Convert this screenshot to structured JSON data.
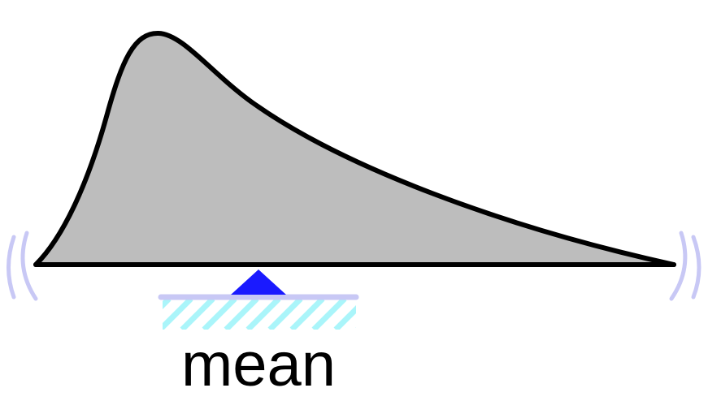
{
  "labels": {
    "mean": "mean"
  },
  "colors": {
    "distribution_fill": "#bdbdbd",
    "outline": "#000000",
    "fulcrum": "#1a1aff",
    "support_line": "#c8c8f5",
    "hatching": "#aaf5fa",
    "wobble_marks": "#c8c8f5"
  }
}
